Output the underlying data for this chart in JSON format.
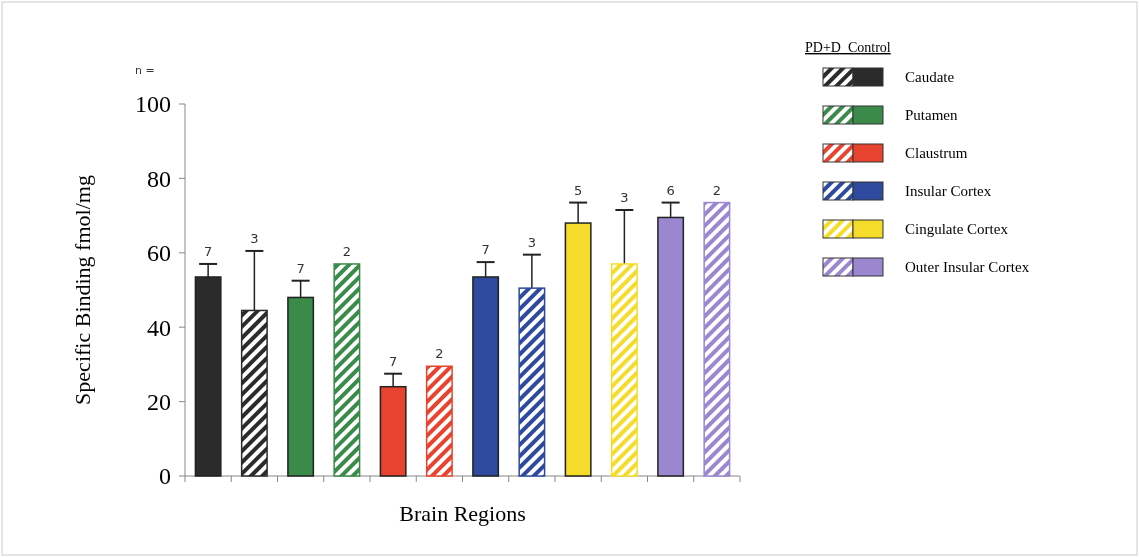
{
  "chart_data": {
    "type": "bar",
    "ylabel": "Specific Binding fmol/mg",
    "xlabel": "Brain Regions",
    "categories": [
      null,
      null,
      null,
      null,
      null,
      null,
      null,
      null,
      null,
      null,
      null,
      null
    ],
    "series": [
      {
        "name": "Caudate",
        "color": "#2b2b2b",
        "values": [
          53.5,
          44.5,
          null,
          null,
          null,
          null,
          null,
          null,
          null,
          null,
          null,
          null
        ],
        "errors": [
          [
            53.5,
            57
          ],
          [
            44.5,
            60.5
          ],
          null,
          null,
          null,
          null,
          null,
          null,
          null,
          null,
          null,
          null
        ]
      },
      {
        "name": "Putamen",
        "color": "#3a8a4a",
        "values": [
          null,
          null,
          48,
          57,
          null,
          null,
          null,
          null,
          null,
          null,
          null,
          null
        ],
        "errors": [
          null,
          null,
          [
            48,
            52.5
          ],
          null,
          null,
          null,
          null,
          null,
          null,
          null,
          null,
          null
        ]
      },
      {
        "name": "Claustrum",
        "color": "#e8432e",
        "values": [
          null,
          null,
          null,
          null,
          24,
          29.5,
          null,
          null,
          null,
          null,
          null,
          null
        ],
        "errors": [
          null,
          null,
          null,
          null,
          [
            24,
            27.5
          ],
          null,
          null,
          null,
          null,
          null,
          null,
          null
        ]
      },
      {
        "name": "Insular Cortex",
        "color": "#2e4a9e",
        "values": [
          null,
          null,
          null,
          null,
          null,
          null,
          53.5,
          50.5,
          null,
          null,
          null,
          null
        ],
        "errors": [
          null,
          null,
          null,
          null,
          null,
          null,
          [
            53.5,
            57.5
          ],
          [
            50.5,
            59.5
          ],
          null,
          null,
          null,
          null
        ]
      },
      {
        "name": "Cingulate Cortex",
        "color": "#f5dc2a",
        "values": [
          null,
          null,
          null,
          null,
          null,
          null,
          null,
          null,
          68,
          57,
          null,
          null
        ],
        "errors": [
          null,
          null,
          null,
          null,
          null,
          null,
          null,
          null,
          [
            68,
            73.5
          ],
          [
            57,
            71.5
          ],
          null,
          null
        ]
      },
      {
        "name": "Outer Insular Cortex",
        "color": "#9b86d0",
        "values": [
          null,
          null,
          null,
          null,
          null,
          null,
          null,
          null,
          null,
          null,
          69.5,
          73.5
        ],
        "errors": [
          null,
          null,
          null,
          null,
          null,
          null,
          null,
          null,
          null,
          null,
          [
            69.5,
            73.5
          ],
          null
        ]
      }
    ],
    "ylim": [
      0,
      100
    ],
    "yticks": [
      0,
      20,
      40,
      60,
      80,
      100
    ],
    "legend": "top right",
    "legend_title": "PD+D  Control",
    "annotations": [
      "n =",
      "7",
      "3",
      "7",
      "2",
      "7",
      "2",
      "7",
      "3",
      "5",
      "3",
      "6",
      "2"
    ]
  }
}
